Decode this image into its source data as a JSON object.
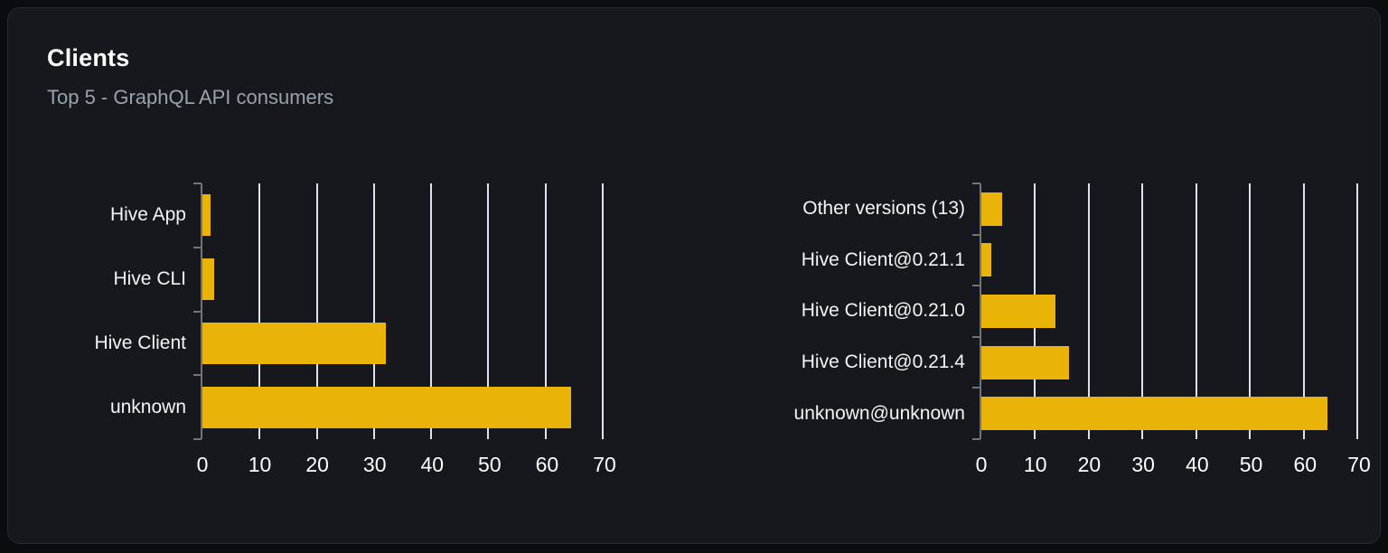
{
  "header": {
    "title": "Clients",
    "subtitle": "Top 5 - GraphQL API consumers"
  },
  "colors": {
    "bar": "#eab308",
    "grid_line": "#dde2ee",
    "axis": "#71747d",
    "card_bg": "#16181d",
    "page_bg": "#0a0c0f",
    "title": "#ffffff",
    "subtitle": "#9aa2ac"
  },
  "chart_data": [
    {
      "type": "bar",
      "orientation": "horizontal",
      "categories": [
        "Hive App",
        "Hive CLI",
        "Hive Client",
        "unknown"
      ],
      "values": [
        1.5,
        2.1,
        32.1,
        64.4
      ],
      "xlim": [
        0,
        70
      ],
      "xticks": [
        0,
        10,
        20,
        30,
        40,
        50,
        60,
        70
      ],
      "grid": true,
      "legend": false,
      "bar_color": "#eab308"
    },
    {
      "type": "bar",
      "orientation": "horizontal",
      "categories": [
        "Other versions (13)",
        "Hive Client@0.21.1",
        "Hive Client@0.21.0",
        "Hive Client@0.21.4",
        "unknown@unknown"
      ],
      "values": [
        3.9,
        1.8,
        13.8,
        16.4,
        64.4
      ],
      "xlim": [
        0,
        70
      ],
      "xticks": [
        0,
        10,
        20,
        30,
        40,
        50,
        60,
        70
      ],
      "grid": true,
      "legend": false,
      "bar_color": "#eab308"
    }
  ]
}
